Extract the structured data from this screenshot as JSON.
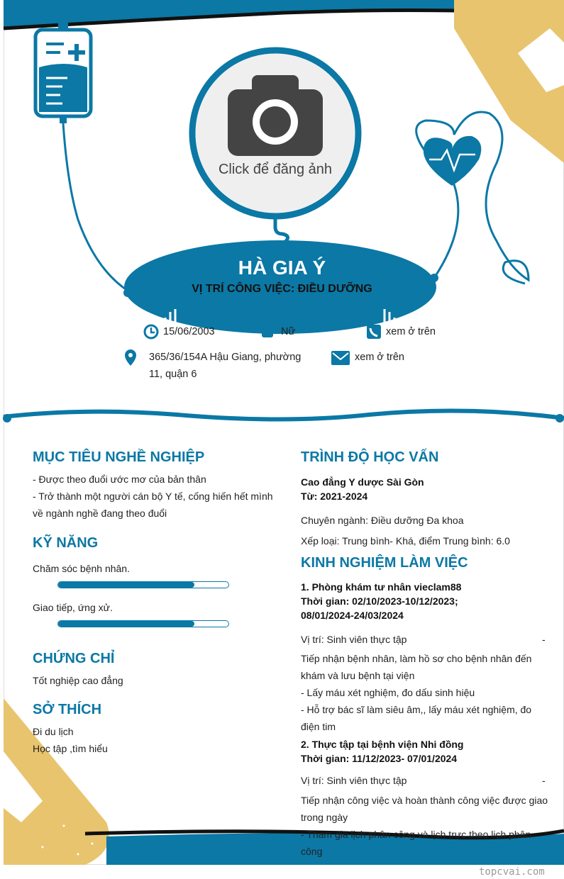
{
  "colors": {
    "accent": "#0b78a5",
    "gold": "#e8c46e"
  },
  "photo": {
    "label": "Click để đăng ảnh",
    "icon": "camera-icon"
  },
  "header": {
    "name": "HÀ GIA Ý",
    "role": "VỊ TRÍ CÔNG VIỆC: ĐIỀU DƯỠNG"
  },
  "info": {
    "birthday": "15/06/2003",
    "gender": "Nữ",
    "phone": "xem ở trên",
    "address_line1": "365/36/154A Hậu Giang, phường",
    "address_line2": "11, quận 6",
    "email": "xem ở trên"
  },
  "objective": {
    "title": "MỤC TIÊU NGHỀ NGHIỆP",
    "lines": [
      "- Được theo đuổi ước mơ của bản thân",
      "- Trở thành một người cán bộ Y tế, cống hiến hết mình",
      "về ngành nghề đang theo đuổi"
    ]
  },
  "skills": {
    "title": "KỸ NĂNG",
    "items": [
      {
        "name": "Chăm sóc bệnh nhân.",
        "level": 80
      },
      {
        "name": "Giao tiếp, ứng xử.",
        "level": 80
      }
    ]
  },
  "certificates": {
    "title": "CHỨNG CHỈ",
    "items": [
      "Tốt nghiệp cao đẳng"
    ]
  },
  "hobbies": {
    "title": "SỞ THÍCH",
    "items": [
      "Đi du lịch",
      "Học tập ,tìm hiểu"
    ]
  },
  "education": {
    "title": "TRÌNH ĐỘ HỌC VẤN",
    "school": "Cao đẳng Y dược Sài Gòn",
    "period": "Từ: 2021-2024",
    "major": "Chuyên ngành: Điều dưỡng Đa khoa",
    "grade": "Xếp loại: Trung bình- Khá, điểm Trung bình: 6.0"
  },
  "experience": {
    "title": "KINH NGHIỆM LÀM VIỆC",
    "jobs": [
      {
        "name": "1. Phòng khám tư nhân vieclam88",
        "time1": "Thời gian: 02/10/2023-10/12/2023;",
        "time2": "08/01/2024-24/03/2024",
        "position": "Vị trí: Sinh viên thực tập",
        "dash": "-",
        "lines": [
          "Tiếp nhận bệnh nhân, làm hồ sơ cho bệnh nhân đến",
          "khám và lưu bệnh tại viện",
          "- Lấy máu xét nghiệm, đo dấu sinh hiệu",
          "-  Hỗ trợ bác sĩ làm siêu âm,, lấy máu xét nghiệm, đo",
          "điện tim"
        ]
      },
      {
        "name": "2. Thực tập tại bệnh viện Nhi đồng",
        "time1": "Thời gian: 11/12/2023- 07/01/2024",
        "position": "Vị trí: Sinh viên thực tập",
        "dash": "-",
        "lines": [
          "Tiếp nhận công việc và hoàn thành công việc được giao",
          "trong ngày",
          "- Tham gia lịch phân công và lịch trực theo lịch phân",
          "công"
        ]
      }
    ]
  },
  "watermark": "topcvai.com"
}
